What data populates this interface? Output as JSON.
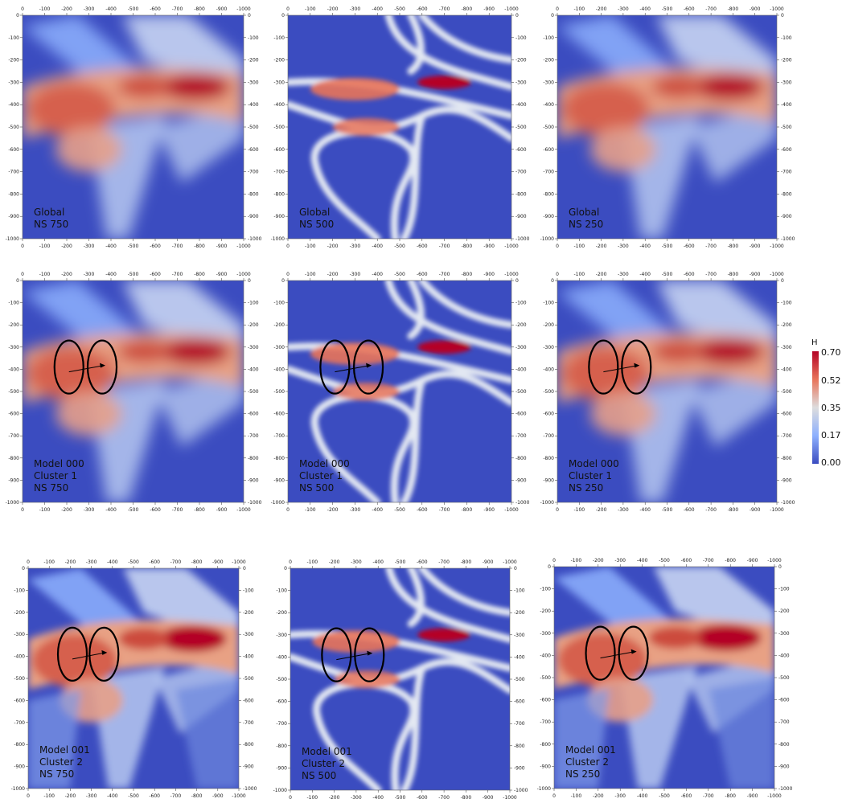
{
  "x_ticks": [
    "0",
    "-100",
    "-200",
    "-300",
    "-400",
    "-500",
    "-600",
    "-700",
    "-800",
    "-900",
    "-1000"
  ],
  "y_ticks": [
    "0",
    "-100",
    "-200",
    "-300",
    "-400",
    "-500",
    "-600",
    "-700",
    "-800",
    "-900",
    "-1000"
  ],
  "panels": [
    {
      "label": [
        "Global",
        "NS 750"
      ],
      "pattern": "smooth",
      "ellipses": false
    },
    {
      "label": [
        "Global",
        "NS 500"
      ],
      "pattern": "channels",
      "ellipses": false
    },
    {
      "label": [
        "Global",
        "NS 250"
      ],
      "pattern": "smooth",
      "ellipses": false
    },
    {
      "label": [
        "Model 000",
        "Cluster 1",
        "NS 750"
      ],
      "pattern": "smooth",
      "ellipses": true
    },
    {
      "label": [
        "Model 000",
        "Cluster 1",
        "NS 500"
      ],
      "pattern": "channels",
      "ellipses": true
    },
    {
      "label": [
        "Model 000",
        "Cluster 1",
        "NS 250"
      ],
      "pattern": "smooth",
      "ellipses": true
    },
    {
      "label": [
        "Model 001",
        "Cluster 2",
        "NS 750"
      ],
      "pattern": "faceted",
      "ellipses": true
    },
    {
      "label": [
        "Model 001",
        "Cluster 2",
        "NS 500"
      ],
      "pattern": "channels",
      "ellipses": true
    },
    {
      "label": [
        "Model 001",
        "Cluster 2",
        "NS 250"
      ],
      "pattern": "faceted",
      "ellipses": true
    }
  ],
  "colorbar": {
    "title": "H",
    "ticks": [
      "0.70",
      "0.52",
      "0.35",
      "0.17",
      "0.00"
    ],
    "colors": [
      "#b40426",
      "#e8745a",
      "#dddddd",
      "#8db0fe",
      "#3b4cc0"
    ]
  },
  "palette": {
    "low": "#3b4cc0",
    "mid": "#dddddd",
    "high": "#b40426",
    "warm": "#e8745a"
  }
}
